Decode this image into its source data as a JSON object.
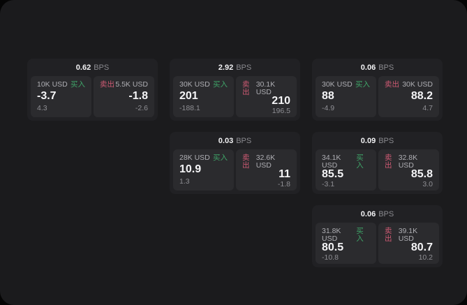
{
  "labels": {
    "buy": "买入",
    "sell": "卖出",
    "bps_unit": "BPS"
  },
  "colors": {
    "background": "#050505",
    "window": "#1b1b1d",
    "card": "#212124",
    "tile": "#2b2b2e",
    "buy_accent": "#3fa468",
    "sell_accent": "#cd5a73",
    "primary_text": "#f5f5f7",
    "muted_text": "#8f8f94"
  },
  "cards": [
    {
      "row": 1,
      "col": 1,
      "bps": "0.62",
      "buy": {
        "notional": "10K USD",
        "price": "-3.7",
        "delta": "4.3"
      },
      "sell": {
        "notional": "5.5K USD",
        "price": "-1.8",
        "delta": "-2.6"
      }
    },
    {
      "row": 1,
      "col": 2,
      "bps": "2.92",
      "buy": {
        "notional": "30K USD",
        "price": "201",
        "delta": "-188.1"
      },
      "sell": {
        "notional": "30.1K USD",
        "price": "210",
        "delta": "196.5"
      }
    },
    {
      "row": 1,
      "col": 3,
      "bps": "0.06",
      "buy": {
        "notional": "30K USD",
        "price": "88",
        "delta": "-4.9"
      },
      "sell": {
        "notional": "30K USD",
        "price": "88.2",
        "delta": "4.7"
      }
    },
    {
      "row": 2,
      "col": 2,
      "bps": "0.03",
      "buy": {
        "notional": "28K USD",
        "price": "10.9",
        "delta": "1.3"
      },
      "sell": {
        "notional": "32.6K USD",
        "price": "11",
        "delta": "-1.8"
      }
    },
    {
      "row": 2,
      "col": 3,
      "bps": "0.09",
      "buy": {
        "notional": "34.1K USD",
        "price": "85.5",
        "delta": "-3.1"
      },
      "sell": {
        "notional": "32.8K USD",
        "price": "85.8",
        "delta": "3.0"
      }
    },
    {
      "row": 3,
      "col": 3,
      "bps": "0.06",
      "buy": {
        "notional": "31.8K USD",
        "price": "80.5",
        "delta": "-10.8"
      },
      "sell": {
        "notional": "39.1K USD",
        "price": "80.7",
        "delta": "10.2"
      }
    }
  ]
}
